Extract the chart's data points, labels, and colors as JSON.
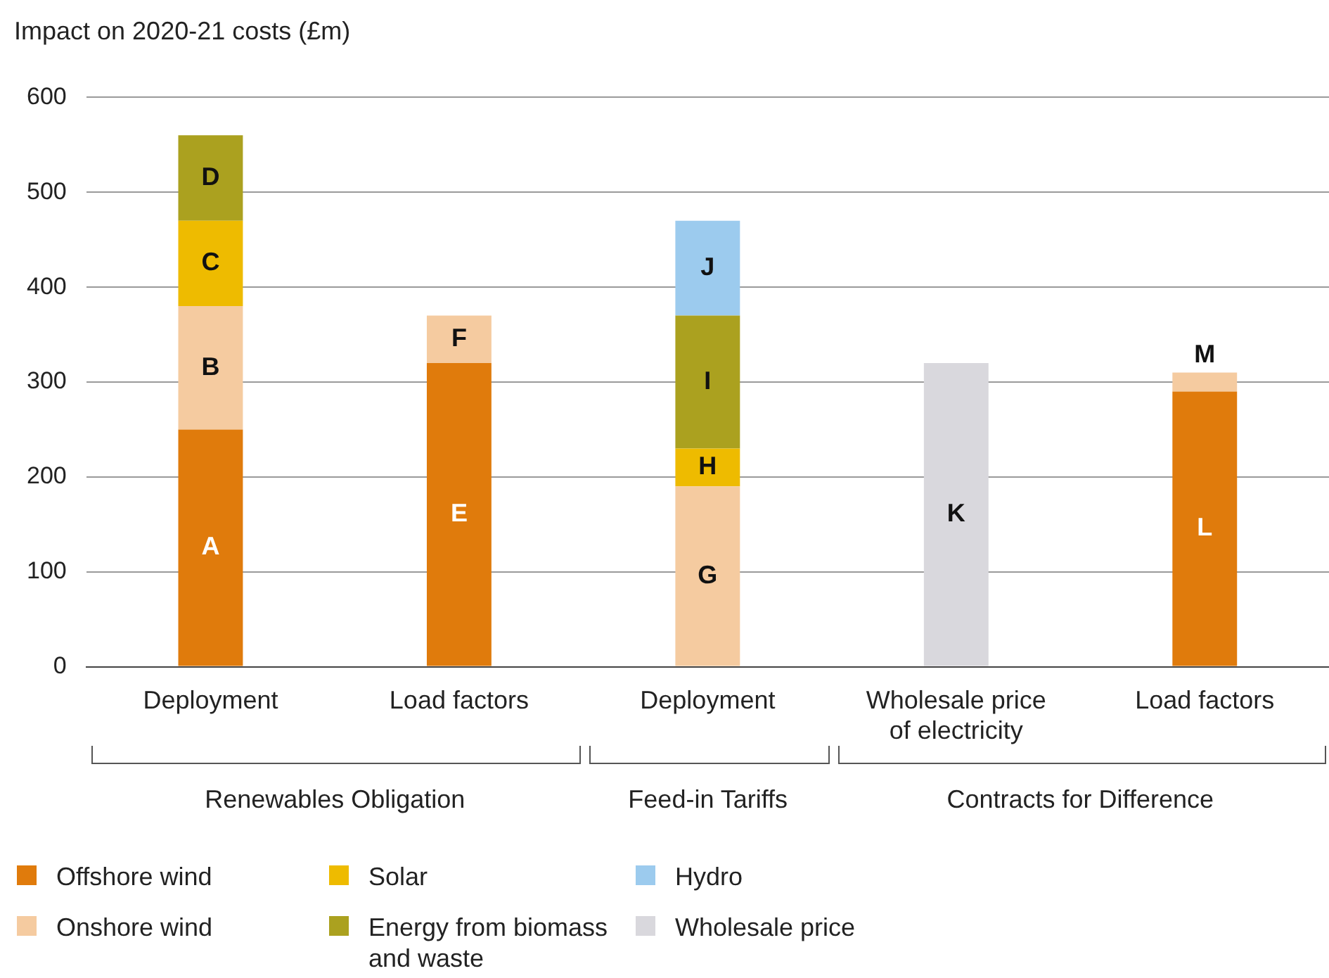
{
  "chart_data": {
    "type": "bar",
    "stacked": true,
    "ylabel": "Impact on 2020-21 costs (£m)",
    "categories": [
      "Deployment",
      "Load factors",
      "Deployment",
      "Wholesale price of electricity",
      "Load factors"
    ],
    "series": [
      {
        "name": "Offshore wind",
        "color": "#e07b0c",
        "values": [
          250,
          320,
          null,
          null,
          290
        ],
        "value_labels": [
          "A",
          "E",
          null,
          null,
          "L"
        ]
      },
      {
        "name": "Onshore wind",
        "color": "#f5cba0",
        "values": [
          130,
          50,
          190,
          null,
          20
        ],
        "value_labels": [
          "B",
          "F",
          "G",
          null,
          "M"
        ]
      },
      {
        "name": "Solar",
        "color": "#eebb00",
        "values": [
          90,
          null,
          40,
          null,
          null
        ],
        "value_labels": [
          "C",
          null,
          "H",
          null,
          null
        ]
      },
      {
        "name": "Energy from biomass and waste",
        "color": "#aba11f",
        "values": [
          90,
          null,
          140,
          null,
          null
        ],
        "value_labels": [
          "D",
          null,
          "I",
          null,
          null
        ]
      },
      {
        "name": "Hydro",
        "color": "#9ccbee",
        "values": [
          null,
          null,
          100,
          null,
          null
        ],
        "value_labels": [
          null,
          null,
          "J",
          null,
          null
        ]
      },
      {
        "name": "Wholesale price",
        "color": "#d9d8dd",
        "values": [
          null,
          null,
          null,
          320,
          null
        ],
        "value_labels": [
          null,
          null,
          null,
          "K",
          null
        ]
      }
    ],
    "ylim": [
      0,
      600
    ],
    "yticks": [
      0,
      100,
      200,
      300,
      400,
      500,
      600
    ],
    "grid": "y",
    "legend": "bottom left",
    "annotations": [
      "Renewables Obligation",
      "Feed-in Tariffs",
      "Contracts for Difference"
    ]
  }
}
